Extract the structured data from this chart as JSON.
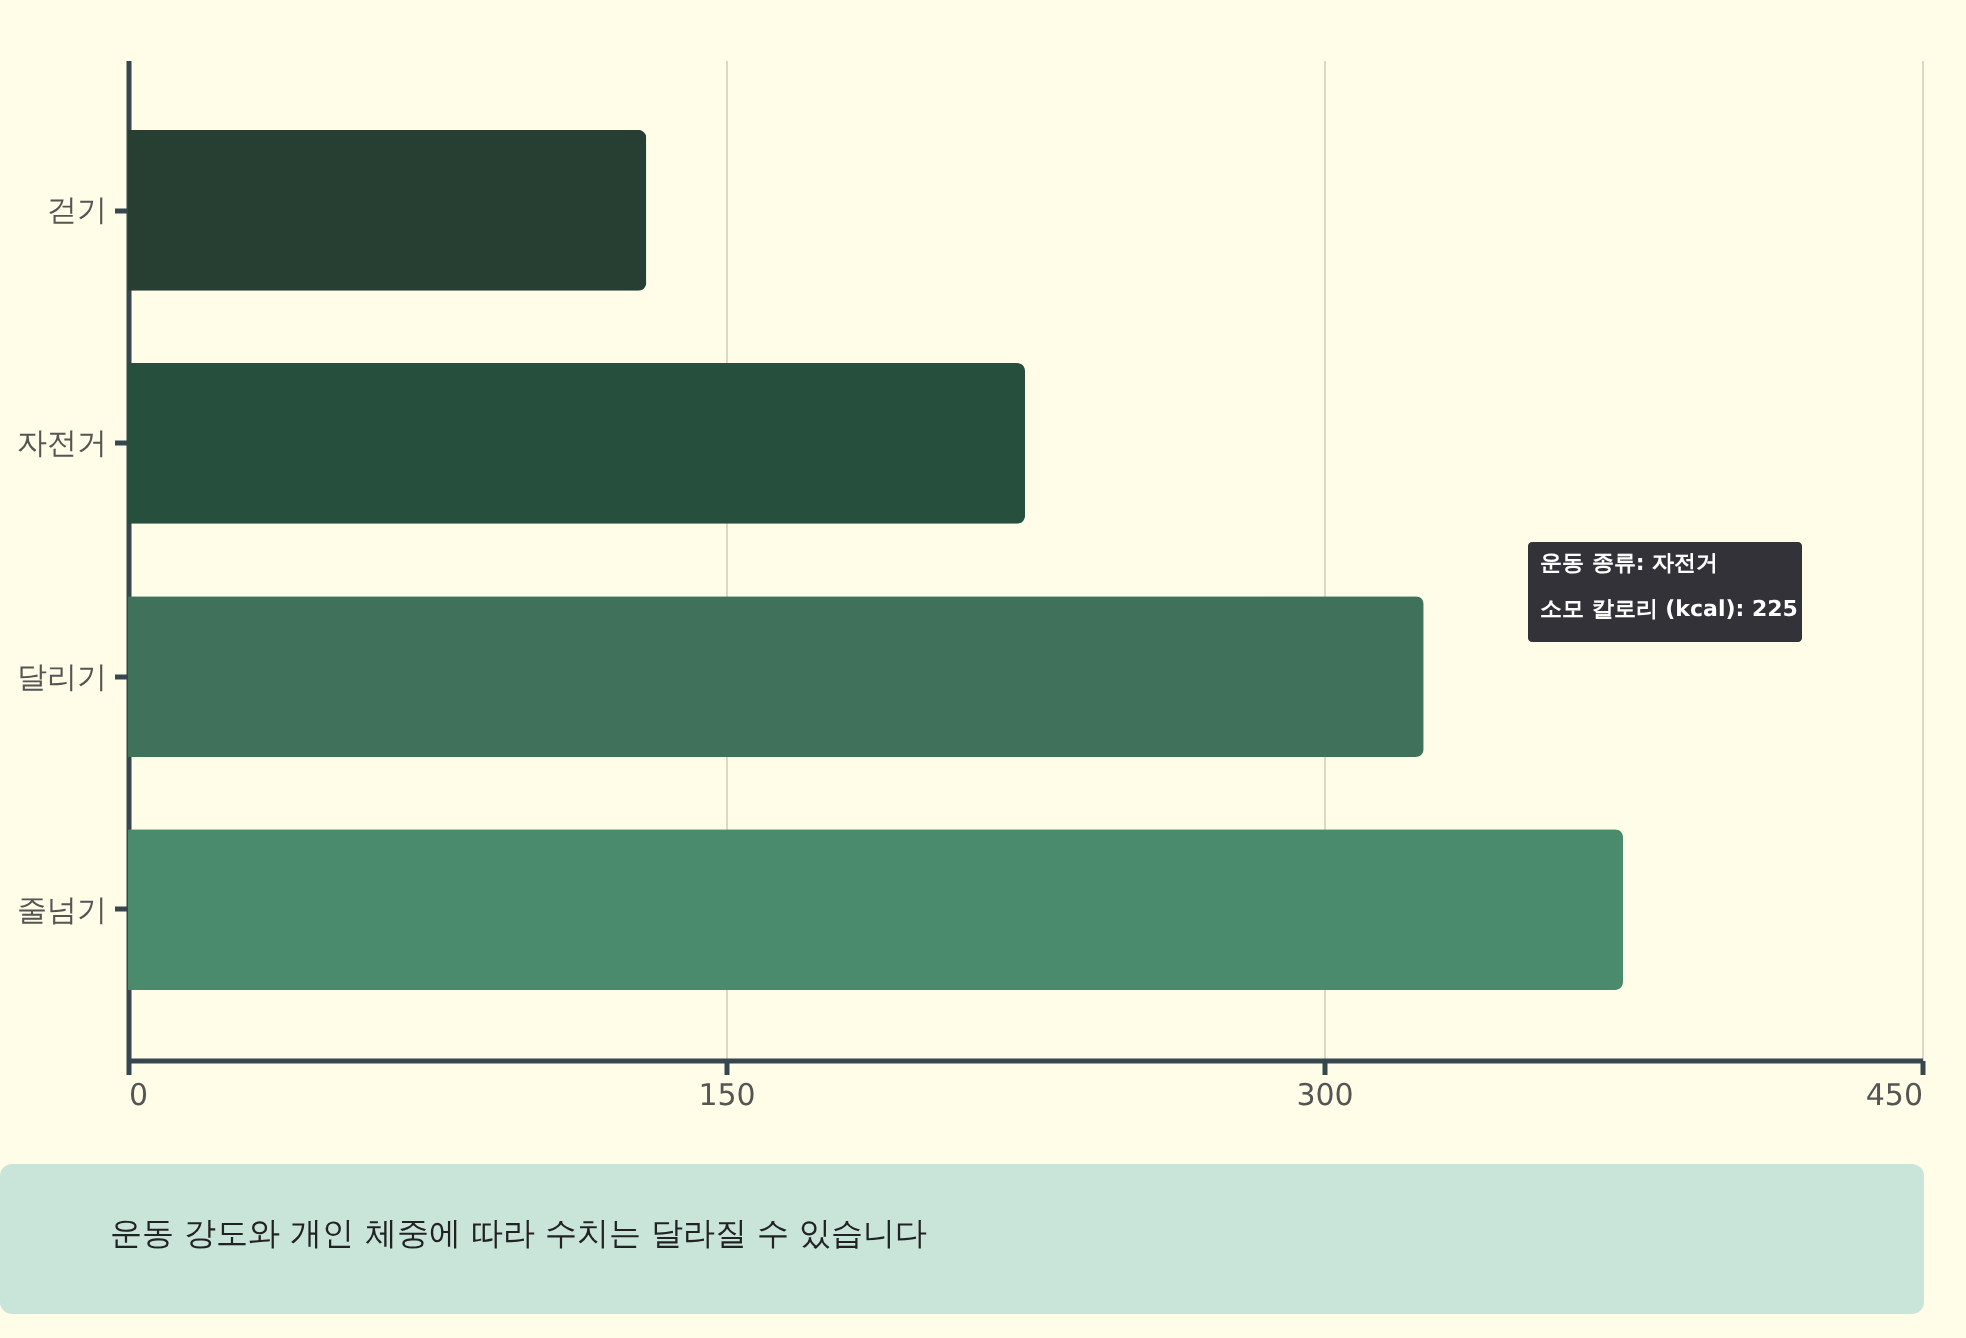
{
  "chart_data": {
    "type": "bar",
    "orientation": "horizontal",
    "categories": [
      "걷기",
      "자전거",
      "달리기",
      "줄넘기"
    ],
    "values": [
      130,
      225,
      325,
      375
    ],
    "colors": [
      "#273f33",
      "#264f3d",
      "#40715b",
      "#4a8b6e"
    ],
    "xlim": [
      0,
      450
    ],
    "xticks": [
      0,
      150,
      300,
      450
    ],
    "grid": "x",
    "annotations": [
      "운동 종류: 자전거",
      "소모 칼로리 (kcal): 225",
      "운동 강도와 개인 체중에 따라 수치는 달라질 수 있습니다"
    ]
  }
}
